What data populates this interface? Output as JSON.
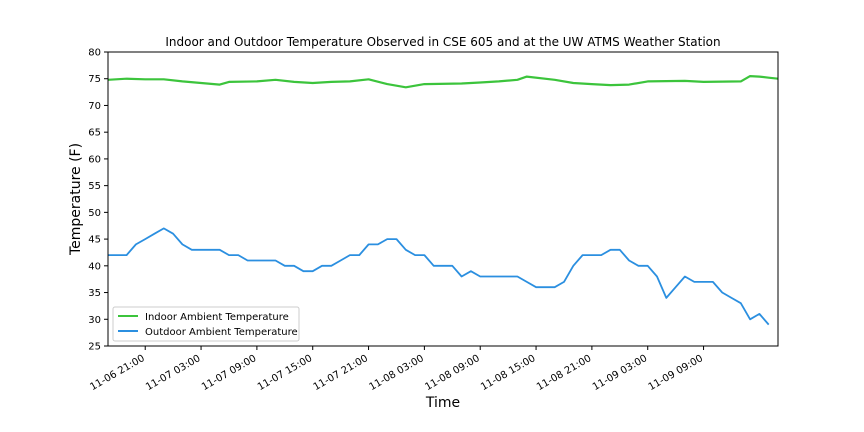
{
  "chart_data": {
    "type": "line",
    "title": "Indoor and Outdoor Temperature Observed in CSE 605 and at the UW ATMS Weather Station",
    "xlabel": "Time",
    "ylabel": "Temperature (F)",
    "xlim": [
      "2023-11-06 17:00",
      "2023-11-09 17:00"
    ],
    "ylim": [
      25,
      80
    ],
    "yticks": [
      25,
      30,
      35,
      40,
      45,
      50,
      55,
      60,
      65,
      70,
      75,
      80
    ],
    "xticks": [
      {
        "t": "2023-11-06 21:00",
        "label": "11-06 21:00"
      },
      {
        "t": "2023-11-07 03:00",
        "label": "11-07 03:00"
      },
      {
        "t": "2023-11-07 09:00",
        "label": "11-07 09:00"
      },
      {
        "t": "2023-11-07 15:00",
        "label": "11-07 15:00"
      },
      {
        "t": "2023-11-07 21:00",
        "label": "11-07 21:00"
      },
      {
        "t": "2023-11-08 03:00",
        "label": "11-08 03:00"
      },
      {
        "t": "2023-11-08 09:00",
        "label": "11-08 09:00"
      },
      {
        "t": "2023-11-08 15:00",
        "label": "11-08 15:00"
      },
      {
        "t": "2023-11-08 21:00",
        "label": "11-08 21:00"
      },
      {
        "t": "2023-11-09 03:00",
        "label": "11-09 03:00"
      },
      {
        "t": "2023-11-09 09:00",
        "label": "11-09 09:00"
      }
    ],
    "grid": false,
    "legend_position": "lower-left",
    "series": [
      {
        "name": "Indoor Ambient Temperature",
        "color": "#3cc43c",
        "points": [
          [
            "2023-11-06 17:00",
            74.8
          ],
          [
            "2023-11-06 19:00",
            75.0
          ],
          [
            "2023-11-06 21:00",
            74.9
          ],
          [
            "2023-11-06 23:00",
            74.9
          ],
          [
            "2023-11-07 01:00",
            74.5
          ],
          [
            "2023-11-07 03:00",
            74.2
          ],
          [
            "2023-11-07 05:00",
            73.9
          ],
          [
            "2023-11-07 06:00",
            74.4
          ],
          [
            "2023-11-07 09:00",
            74.5
          ],
          [
            "2023-11-07 11:00",
            74.8
          ],
          [
            "2023-11-07 13:00",
            74.4
          ],
          [
            "2023-11-07 15:00",
            74.2
          ],
          [
            "2023-11-07 17:00",
            74.4
          ],
          [
            "2023-11-07 19:00",
            74.5
          ],
          [
            "2023-11-07 21:00",
            74.9
          ],
          [
            "2023-11-07 23:00",
            74.0
          ],
          [
            "2023-11-08 01:00",
            73.4
          ],
          [
            "2023-11-08 03:00",
            74.0
          ],
          [
            "2023-11-08 07:00",
            74.1
          ],
          [
            "2023-11-08 09:00",
            74.3
          ],
          [
            "2023-11-08 11:00",
            74.5
          ],
          [
            "2023-11-08 13:00",
            74.8
          ],
          [
            "2023-11-08 14:00",
            75.4
          ],
          [
            "2023-11-08 17:00",
            74.8
          ],
          [
            "2023-11-08 19:00",
            74.2
          ],
          [
            "2023-11-08 21:00",
            74.0
          ],
          [
            "2023-11-08 23:00",
            73.8
          ],
          [
            "2023-11-09 01:00",
            73.9
          ],
          [
            "2023-11-09 03:00",
            74.5
          ],
          [
            "2023-11-09 07:00",
            74.6
          ],
          [
            "2023-11-09 09:00",
            74.4
          ],
          [
            "2023-11-09 13:00",
            74.5
          ],
          [
            "2023-11-09 14:00",
            75.5
          ],
          [
            "2023-11-09 15:00",
            75.4
          ],
          [
            "2023-11-09 16:00",
            75.2
          ],
          [
            "2023-11-09 17:00",
            75.0
          ]
        ]
      },
      {
        "name": "Outdoor Ambient Temperature",
        "color": "#2b8fe0",
        "points": [
          [
            "2023-11-06 17:00",
            42
          ],
          [
            "2023-11-06 18:00",
            42
          ],
          [
            "2023-11-06 19:00",
            42
          ],
          [
            "2023-11-06 20:00",
            44
          ],
          [
            "2023-11-06 21:00",
            45
          ],
          [
            "2023-11-06 22:00",
            46
          ],
          [
            "2023-11-06 23:00",
            47
          ],
          [
            "2023-11-07 00:00",
            46
          ],
          [
            "2023-11-07 01:00",
            44
          ],
          [
            "2023-11-07 02:00",
            43
          ],
          [
            "2023-11-07 03:00",
            43
          ],
          [
            "2023-11-07 04:00",
            43
          ],
          [
            "2023-11-07 05:00",
            43
          ],
          [
            "2023-11-07 06:00",
            42
          ],
          [
            "2023-11-07 07:00",
            42
          ],
          [
            "2023-11-07 08:00",
            41
          ],
          [
            "2023-11-07 09:00",
            41
          ],
          [
            "2023-11-07 10:00",
            41
          ],
          [
            "2023-11-07 11:00",
            41
          ],
          [
            "2023-11-07 12:00",
            40
          ],
          [
            "2023-11-07 13:00",
            40
          ],
          [
            "2023-11-07 14:00",
            39
          ],
          [
            "2023-11-07 15:00",
            39
          ],
          [
            "2023-11-07 16:00",
            40
          ],
          [
            "2023-11-07 17:00",
            40
          ],
          [
            "2023-11-07 18:00",
            41
          ],
          [
            "2023-11-07 19:00",
            42
          ],
          [
            "2023-11-07 20:00",
            42
          ],
          [
            "2023-11-07 21:00",
            44
          ],
          [
            "2023-11-07 22:00",
            44
          ],
          [
            "2023-11-07 23:00",
            45
          ],
          [
            "2023-11-08 00:00",
            45
          ],
          [
            "2023-11-08 01:00",
            43
          ],
          [
            "2023-11-08 02:00",
            42
          ],
          [
            "2023-11-08 03:00",
            42
          ],
          [
            "2023-11-08 04:00",
            40
          ],
          [
            "2023-11-08 05:00",
            40
          ],
          [
            "2023-11-08 06:00",
            40
          ],
          [
            "2023-11-08 07:00",
            38
          ],
          [
            "2023-11-08 08:00",
            39
          ],
          [
            "2023-11-08 09:00",
            38
          ],
          [
            "2023-11-08 10:00",
            38
          ],
          [
            "2023-11-08 11:00",
            38
          ],
          [
            "2023-11-08 12:00",
            38
          ],
          [
            "2023-11-08 13:00",
            38
          ],
          [
            "2023-11-08 14:00",
            37
          ],
          [
            "2023-11-08 15:00",
            36
          ],
          [
            "2023-11-08 16:00",
            36
          ],
          [
            "2023-11-08 17:00",
            36
          ],
          [
            "2023-11-08 18:00",
            37
          ],
          [
            "2023-11-08 19:00",
            40
          ],
          [
            "2023-11-08 20:00",
            42
          ],
          [
            "2023-11-08 21:00",
            42
          ],
          [
            "2023-11-08 22:00",
            42
          ],
          [
            "2023-11-08 23:00",
            43
          ],
          [
            "2023-11-09 00:00",
            43
          ],
          [
            "2023-11-09 01:00",
            41
          ],
          [
            "2023-11-09 02:00",
            40
          ],
          [
            "2023-11-09 03:00",
            40
          ],
          [
            "2023-11-09 04:00",
            38
          ],
          [
            "2023-11-09 05:00",
            34
          ],
          [
            "2023-11-09 06:00",
            36
          ],
          [
            "2023-11-09 07:00",
            38
          ],
          [
            "2023-11-09 08:00",
            37
          ],
          [
            "2023-11-09 09:00",
            37
          ],
          [
            "2023-11-09 10:00",
            37
          ],
          [
            "2023-11-09 11:00",
            35
          ],
          [
            "2023-11-09 12:00",
            34
          ],
          [
            "2023-11-09 13:00",
            33
          ],
          [
            "2023-11-09 14:00",
            30
          ],
          [
            "2023-11-09 15:00",
            31
          ],
          [
            "2023-11-09 16:00",
            29
          ]
        ]
      }
    ]
  }
}
